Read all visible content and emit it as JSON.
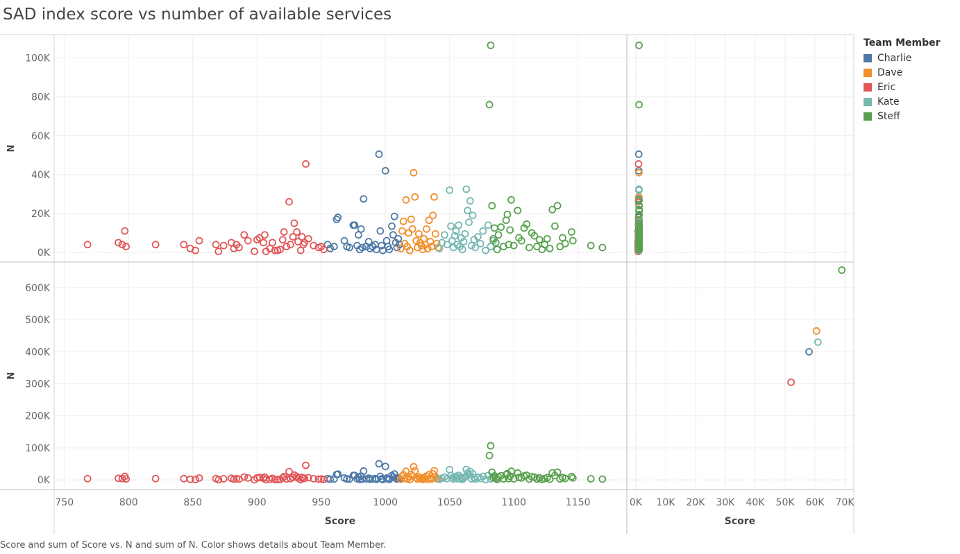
{
  "title": "SAD index score vs number of available services",
  "caption": "Score and sum of Score vs. N and sum of N.  Color shows details about Team Member.",
  "legend": {
    "title": "Team Member",
    "items": [
      {
        "name": "Charlie",
        "color": "#4e79a7"
      },
      {
        "name": "Dave",
        "color": "#f28e2b"
      },
      {
        "name": "Eric",
        "color": "#e15759"
      },
      {
        "name": "Kate",
        "color": "#76b7b2"
      },
      {
        "name": "Steff",
        "color": "#59a14f"
      }
    ]
  },
  "chart_data": {
    "type": "scatter",
    "rows_axis_label": "N",
    "cols_axis_label": "Score",
    "left_x": {
      "label": "Score",
      "range": [
        742,
        1188
      ],
      "ticks": [
        750,
        800,
        850,
        900,
        950,
        1000,
        1050,
        1100,
        1150
      ]
    },
    "right_x": {
      "label": "Score",
      "range": [
        -3000,
        73000
      ],
      "ticks": [
        0,
        10000,
        20000,
        30000,
        40000,
        50000,
        60000,
        70000
      ],
      "tick_labels": [
        "0K",
        "10K",
        "20K",
        "30K",
        "40K",
        "50K",
        "60K",
        "70K"
      ]
    },
    "top_y": {
      "label": "N",
      "range": [
        -5000,
        112000
      ],
      "ticks": [
        0,
        20000,
        40000,
        60000,
        80000,
        100000
      ],
      "tick_labels": [
        "0K",
        "20K",
        "40K",
        "60K",
        "80K",
        "100K"
      ]
    },
    "bottom_y": {
      "label": "N",
      "range": [
        -30000,
        680000
      ],
      "ticks": [
        0,
        100000,
        200000,
        300000,
        400000,
        500000,
        600000
      ],
      "tick_labels": [
        "0K",
        "100K",
        "200K",
        "300K",
        "400K",
        "500K",
        "600K"
      ]
    },
    "grid": true,
    "series": [
      {
        "name": "Charlie",
        "color": "#4e79a7",
        "points": [
          [
            955,
            4000
          ],
          [
            957,
            2000
          ],
          [
            960,
            3000
          ],
          [
            962,
            17000
          ],
          [
            963,
            18000
          ],
          [
            968,
            6000
          ],
          [
            970,
            3000
          ],
          [
            972,
            2500
          ],
          [
            975,
            14000
          ],
          [
            976,
            14000
          ],
          [
            978,
            3500
          ],
          [
            979,
            9000
          ],
          [
            980,
            1500
          ],
          [
            981,
            12000
          ],
          [
            982,
            2500
          ],
          [
            983,
            27500
          ],
          [
            985,
            3000
          ],
          [
            987,
            5500
          ],
          [
            988,
            2000
          ],
          [
            990,
            3000
          ],
          [
            992,
            4000
          ],
          [
            993,
            1500
          ],
          [
            995,
            50500
          ],
          [
            996,
            11000
          ],
          [
            997,
            3500
          ],
          [
            998,
            1000
          ],
          [
            1000,
            42000
          ],
          [
            1001,
            6000
          ],
          [
            1002,
            3000
          ],
          [
            1003,
            1500
          ],
          [
            1005,
            13500
          ],
          [
            1006,
            9000
          ],
          [
            1007,
            18500
          ],
          [
            1008,
            5000
          ],
          [
            1009,
            2500
          ],
          [
            1010,
            7000
          ],
          [
            1011,
            4000
          ]
        ],
        "agg": [
          58000,
          400000
        ]
      },
      {
        "name": "Dave",
        "color": "#f28e2b",
        "points": [
          [
            1012,
            2000
          ],
          [
            1013,
            11000
          ],
          [
            1014,
            16000
          ],
          [
            1015,
            4500
          ],
          [
            1016,
            27000
          ],
          [
            1017,
            3000
          ],
          [
            1018,
            10000
          ],
          [
            1019,
            1000
          ],
          [
            1020,
            17000
          ],
          [
            1021,
            12000
          ],
          [
            1022,
            41000
          ],
          [
            1023,
            28500
          ],
          [
            1024,
            6000
          ],
          [
            1025,
            2500
          ],
          [
            1026,
            9500
          ],
          [
            1027,
            5000
          ],
          [
            1028,
            3500
          ],
          [
            1029,
            1500
          ],
          [
            1030,
            7000
          ],
          [
            1031,
            4000
          ],
          [
            1032,
            12000
          ],
          [
            1033,
            2000
          ],
          [
            1034,
            16500
          ],
          [
            1035,
            5500
          ],
          [
            1036,
            3000
          ],
          [
            1037,
            19000
          ],
          [
            1038,
            28500
          ],
          [
            1039,
            9500
          ],
          [
            1040,
            4500
          ],
          [
            1041,
            2500
          ]
        ],
        "agg": [
          60500,
          465000
        ]
      },
      {
        "name": "Eric",
        "color": "#e15759",
        "points": [
          [
            768,
            4000
          ],
          [
            792,
            5000
          ],
          [
            795,
            4000
          ],
          [
            797,
            11000
          ],
          [
            798,
            3000
          ],
          [
            821,
            4000
          ],
          [
            843,
            4000
          ],
          [
            848,
            2000
          ],
          [
            852,
            1000
          ],
          [
            855,
            6000
          ],
          [
            868,
            4000
          ],
          [
            870,
            500
          ],
          [
            874,
            3500
          ],
          [
            880,
            5000
          ],
          [
            882,
            2000
          ],
          [
            884,
            4000
          ],
          [
            886,
            2500
          ],
          [
            890,
            9000
          ],
          [
            893,
            6000
          ],
          [
            898,
            500
          ],
          [
            900,
            6500
          ],
          [
            902,
            7500
          ],
          [
            905,
            5000
          ],
          [
            906,
            9000
          ],
          [
            907,
            500
          ],
          [
            910,
            2000
          ],
          [
            912,
            5000
          ],
          [
            914,
            1000
          ],
          [
            916,
            1000
          ],
          [
            918,
            1500
          ],
          [
            920,
            6500
          ],
          [
            921,
            10500
          ],
          [
            923,
            3000
          ],
          [
            925,
            26000
          ],
          [
            926,
            4000
          ],
          [
            928,
            8000
          ],
          [
            929,
            15000
          ],
          [
            931,
            10500
          ],
          [
            932,
            5500
          ],
          [
            934,
            1000
          ],
          [
            935,
            8000
          ],
          [
            936,
            4000
          ],
          [
            937,
            5000
          ],
          [
            938,
            45500
          ],
          [
            940,
            7000
          ],
          [
            944,
            3500
          ],
          [
            948,
            2500
          ],
          [
            950,
            3000
          ],
          [
            952,
            1500
          ]
        ],
        "agg": [
          52000,
          305000
        ]
      },
      {
        "name": "Kate",
        "color": "#76b7b2",
        "points": [
          [
            1042,
            2000
          ],
          [
            1044,
            5000
          ],
          [
            1046,
            9000
          ],
          [
            1048,
            4000
          ],
          [
            1050,
            32000
          ],
          [
            1051,
            13500
          ],
          [
            1052,
            6000
          ],
          [
            1053,
            2500
          ],
          [
            1054,
            8500
          ],
          [
            1055,
            11000
          ],
          [
            1056,
            4000
          ],
          [
            1057,
            14000
          ],
          [
            1058,
            3000
          ],
          [
            1059,
            7500
          ],
          [
            1060,
            1500
          ],
          [
            1061,
            5500
          ],
          [
            1062,
            9500
          ],
          [
            1063,
            32500
          ],
          [
            1064,
            21500
          ],
          [
            1065,
            15500
          ],
          [
            1066,
            26500
          ],
          [
            1067,
            3500
          ],
          [
            1068,
            19000
          ],
          [
            1069,
            6500
          ],
          [
            1070,
            2500
          ],
          [
            1072,
            8000
          ],
          [
            1074,
            4500
          ],
          [
            1076,
            11000
          ],
          [
            1078,
            1000
          ],
          [
            1080,
            14000
          ],
          [
            1082,
            3000
          ],
          [
            1084,
            6000
          ]
        ],
        "agg": [
          61000,
          430000
        ]
      },
      {
        "name": "Steff",
        "color": "#59a14f",
        "points": [
          [
            1082,
            106500
          ],
          [
            1081,
            76000
          ],
          [
            1083,
            24000
          ],
          [
            1084,
            7000
          ],
          [
            1085,
            12500
          ],
          [
            1086,
            5000
          ],
          [
            1087,
            1500
          ],
          [
            1088,
            9000
          ],
          [
            1090,
            13000
          ],
          [
            1092,
            3000
          ],
          [
            1094,
            16500
          ],
          [
            1095,
            19500
          ],
          [
            1096,
            4000
          ],
          [
            1097,
            11500
          ],
          [
            1098,
            27000
          ],
          [
            1100,
            3500
          ],
          [
            1103,
            21500
          ],
          [
            1104,
            7500
          ],
          [
            1106,
            6000
          ],
          [
            1108,
            12500
          ],
          [
            1110,
            14500
          ],
          [
            1112,
            2500
          ],
          [
            1114,
            10000
          ],
          [
            1116,
            8500
          ],
          [
            1118,
            3000
          ],
          [
            1120,
            6500
          ],
          [
            1122,
            1500
          ],
          [
            1124,
            4000
          ],
          [
            1126,
            7000
          ],
          [
            1128,
            2000
          ],
          [
            1130,
            22000
          ],
          [
            1132,
            13500
          ],
          [
            1134,
            24000
          ],
          [
            1136,
            3000
          ],
          [
            1138,
            7500
          ],
          [
            1140,
            4500
          ],
          [
            1145,
            10500
          ],
          [
            1146,
            6000
          ],
          [
            1160,
            3500
          ],
          [
            1169,
            2500
          ]
        ],
        "agg": [
          69000,
          655000
        ]
      }
    ]
  }
}
